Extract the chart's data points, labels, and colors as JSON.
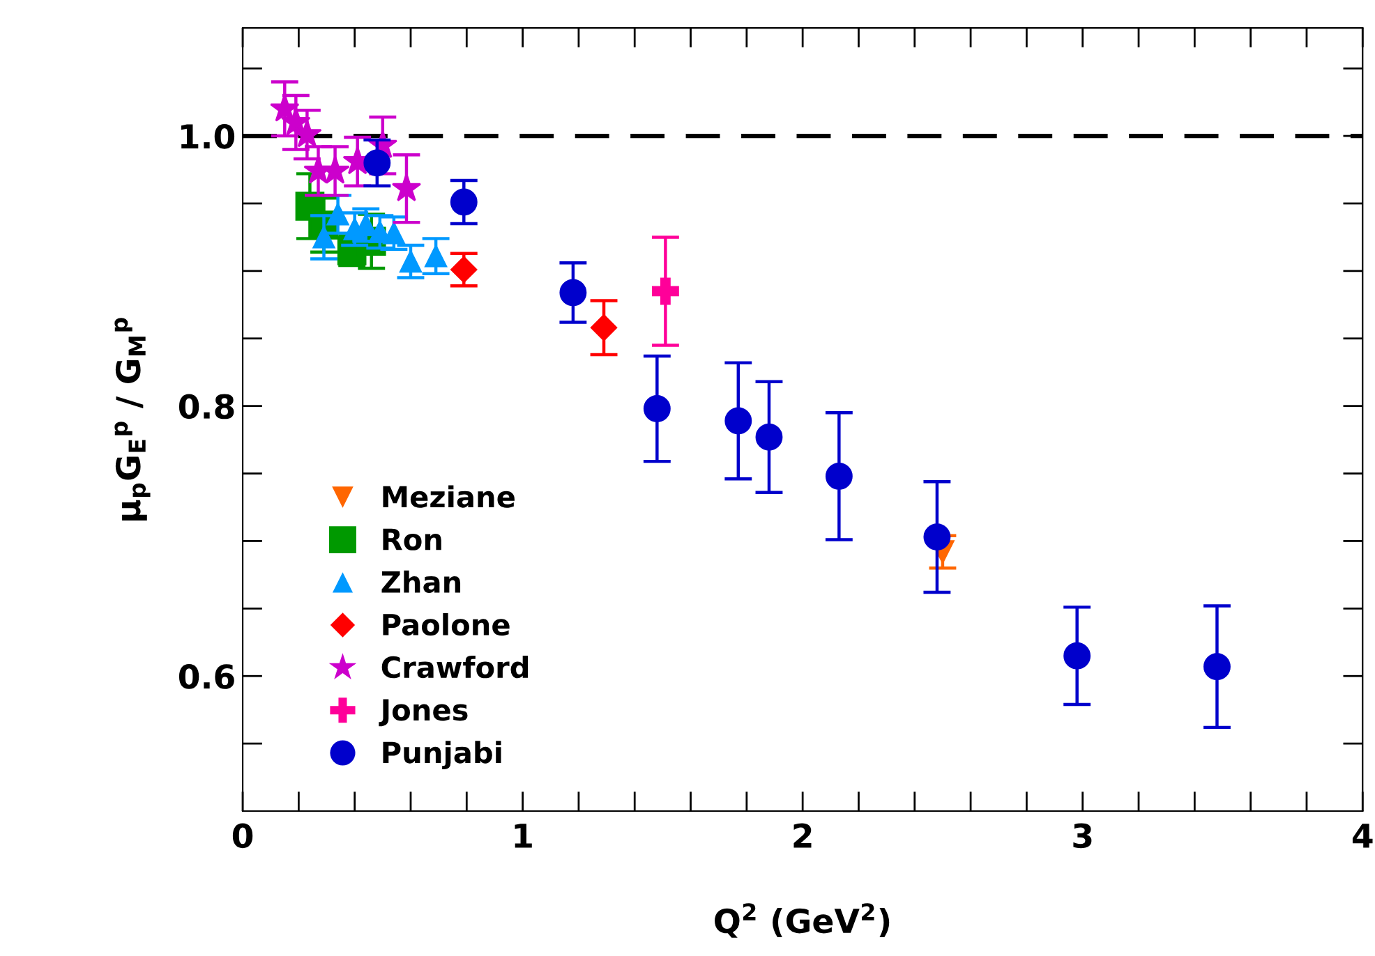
{
  "chart_data": {
    "type": "scatter",
    "xlabel": "Q$^{2}$ (GeV$^{2}$)",
    "ylabel": "μ$_{p}$G$_{E}$$^{p}$ / G$_{M}$$^{p}$",
    "xlim": [
      0,
      4
    ],
    "ylim": [
      0.5,
      1.08
    ],
    "xticks": [
      0,
      {
        "value": 0.2,
        "label": null
      },
      {
        "value": 0.4,
        "label": null
      },
      {
        "value": 0.6,
        "label": null
      },
      {
        "value": 0.8,
        "label": null
      },
      1,
      {
        "value": 1.2,
        "label": null
      },
      {
        "value": 1.4,
        "label": null
      },
      {
        "value": 1.6,
        "label": null
      },
      {
        "value": 1.8,
        "label": null
      },
      2,
      {
        "value": 2.2,
        "label": null
      },
      {
        "value": 2.4,
        "label": null
      },
      {
        "value": 2.6,
        "label": null
      },
      {
        "value": 2.8,
        "label": null
      },
      3,
      {
        "value": 3.2,
        "label": null
      },
      {
        "value": 3.4,
        "label": null
      },
      {
        "value": 3.6,
        "label": null
      },
      {
        "value": 3.8,
        "label": null
      },
      4
    ],
    "yticks": [
      {
        "value": 0.55,
        "label": null
      },
      {
        "value": 0.6,
        "label": "0.6"
      },
      {
        "value": 0.65,
        "label": null
      },
      {
        "value": 0.7,
        "label": null
      },
      {
        "value": 0.75,
        "label": null
      },
      {
        "value": 0.8,
        "label": "0.8"
      },
      {
        "value": 0.85,
        "label": null
      },
      {
        "value": 0.9,
        "label": null
      },
      {
        "value": 0.95,
        "label": null
      },
      {
        "value": 1.0,
        "label": "1.0"
      },
      {
        "value": 1.05,
        "label": null
      }
    ],
    "grid": false,
    "legend": "bottom left",
    "ref_lines": [
      {
        "axis": "y",
        "value": 1.0,
        "color": "#000000",
        "line_style": "dashed"
      }
    ],
    "series": [
      {
        "name": "Meziane",
        "color": "#ff6600",
        "marker": "triangle_down",
        "x": [
          2.5
        ],
        "values": [
          0.692
        ],
        "errors": [
          0.012
        ]
      },
      {
        "name": "Ron",
        "color": "#009900",
        "marker": "square",
        "x": [
          0.24,
          0.29,
          0.39,
          0.46
        ],
        "values": [
          0.948,
          0.934,
          0.915,
          0.922
        ],
        "errors": [
          0.024,
          0.02,
          0.011,
          0.02
        ]
      },
      {
        "name": "Zhan",
        "color": "#0099ff",
        "marker": "triangle",
        "x": [
          0.29,
          0.34,
          0.4,
          0.44,
          0.49,
          0.54,
          0.6,
          0.69
        ],
        "values": [
          0.925,
          0.942,
          0.931,
          0.934,
          0.929,
          0.928,
          0.907,
          0.911
        ],
        "errors": [
          0.016,
          0.014,
          0.012,
          0.012,
          0.012,
          0.012,
          0.012,
          0.013
        ]
      },
      {
        "name": "Paolone",
        "color": "#ff0000",
        "marker": "diamond",
        "x": [
          0.79,
          1.29
        ],
        "values": [
          0.901,
          0.858
        ],
        "errors": [
          0.012,
          0.02
        ]
      },
      {
        "name": "Crawford",
        "color": "#cc00cc",
        "marker": "star",
        "x": [
          0.15,
          0.19,
          0.23,
          0.27,
          0.33,
          0.41,
          0.5,
          0.585
        ],
        "values": [
          1.02,
          1.01,
          1.001,
          0.974,
          0.974,
          0.981,
          0.993,
          0.961
        ],
        "errors": [
          0.02,
          0.02,
          0.018,
          0.018,
          0.018,
          0.018,
          0.021,
          0.025
        ]
      },
      {
        "name": "Jones",
        "color": "#ff0099",
        "marker": "cross",
        "x": [
          1.51
        ],
        "values": [
          0.885
        ],
        "errors": [
          0.04
        ]
      },
      {
        "name": "Punjabi",
        "color": "#0000cc",
        "marker": "circle",
        "x": [
          0.48,
          0.79,
          1.18,
          1.48,
          1.77,
          1.88,
          2.13,
          2.48,
          2.98,
          3.48
        ],
        "values": [
          0.98,
          0.951,
          0.884,
          0.798,
          0.789,
          0.777,
          0.748,
          0.703,
          0.615,
          0.607
        ],
        "errors": [
          0.017,
          0.016,
          0.022,
          0.039,
          0.043,
          0.041,
          0.047,
          0.041,
          0.036,
          0.045
        ]
      }
    ]
  }
}
